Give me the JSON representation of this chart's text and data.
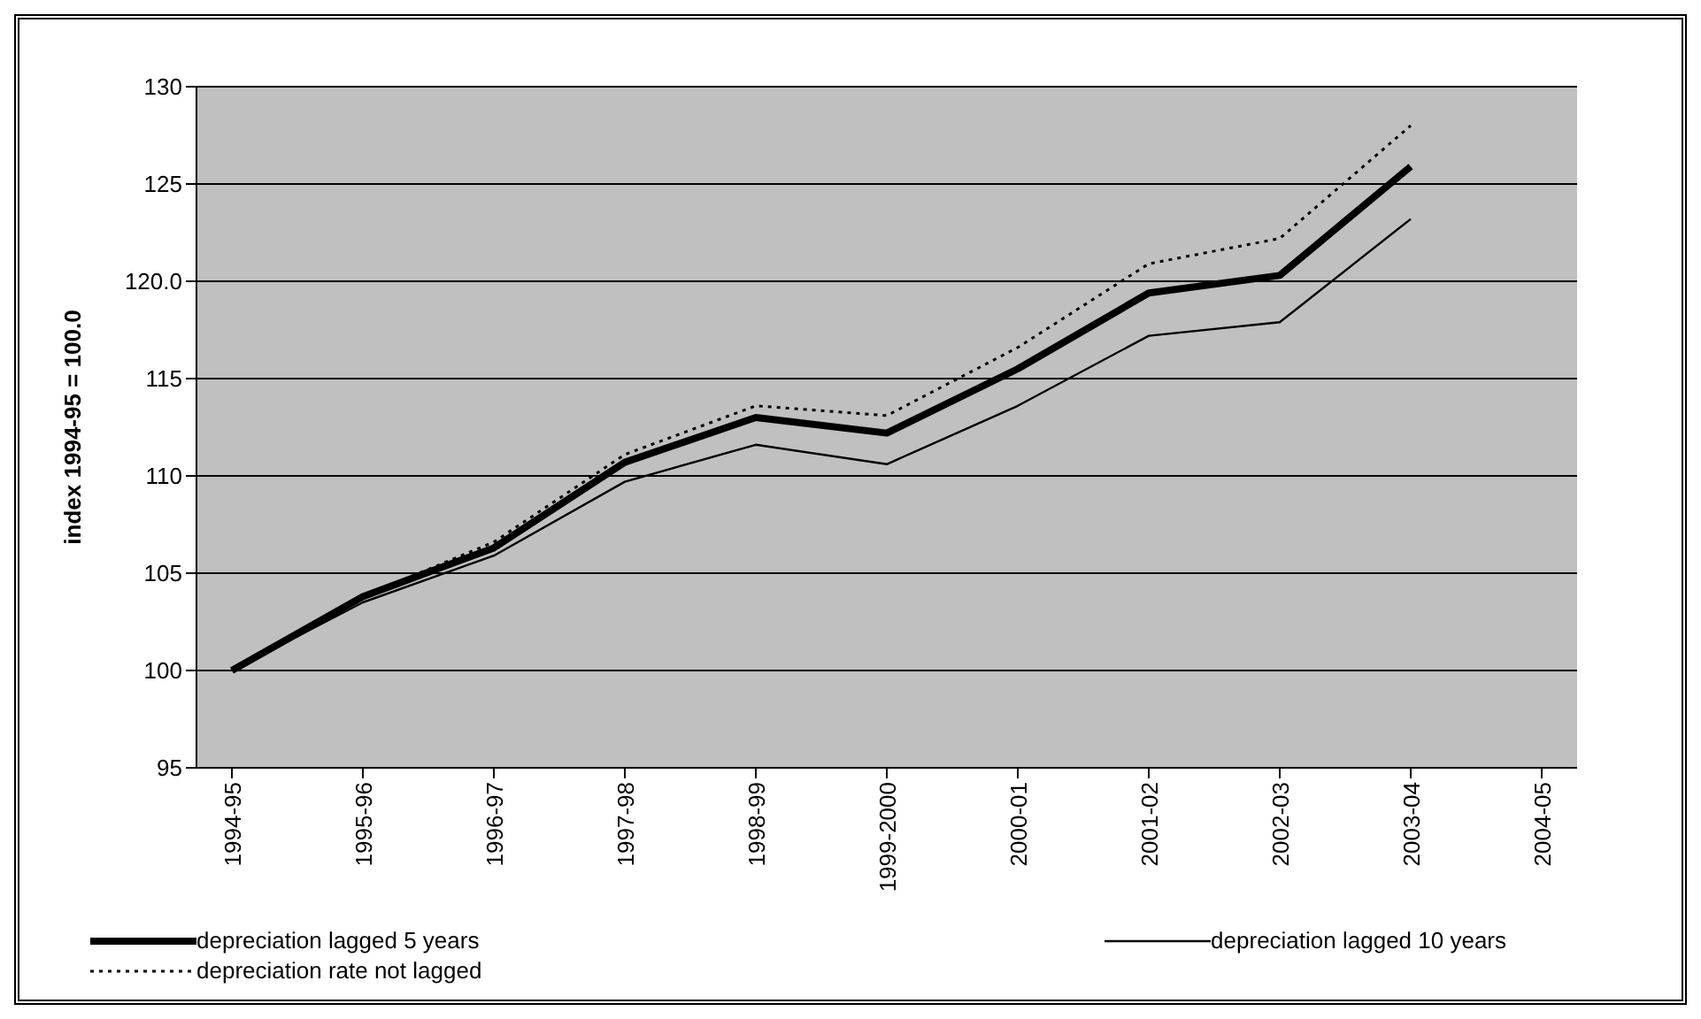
{
  "chart_data": {
    "type": "line",
    "ylabel": "index 1994-95 = 100.0",
    "categories": [
      "1994-95",
      "1995-96",
      "1996-97",
      "1997-98",
      "1998-99",
      "1999-2000",
      "2000-01",
      "2001-02",
      "2002-03",
      "2003-04",
      "2004-05"
    ],
    "series": [
      {
        "name": "depreciation lagged 5 years",
        "color": "#000000",
        "line_style": "solid",
        "values": [
          100,
          103.8,
          106.3,
          110.7,
          113.0,
          112.2,
          115.5,
          119.4,
          120.3,
          125.9,
          null
        ]
      },
      {
        "name": "depreciation lagged 10 years",
        "color": "#000000",
        "line_style": "solid",
        "values": [
          100,
          103.5,
          105.9,
          109.7,
          111.6,
          110.6,
          113.6,
          117.2,
          117.9,
          123.2,
          null
        ]
      },
      {
        "name": "depreciation rate not lagged",
        "color": "#000000",
        "line_style": "dotted",
        "values": [
          100,
          103.8,
          106.6,
          111.1,
          113.6,
          113.1,
          116.6,
          120.9,
          122.2,
          128.0,
          null
        ]
      }
    ],
    "ylim": [
      95,
      130
    ],
    "yticks": [
      95,
      100,
      105,
      110,
      115,
      {
        "value": 120,
        "label": "120.0"
      },
      125,
      130
    ],
    "grid": "y",
    "legend": "bottom",
    "marker": "none"
  }
}
